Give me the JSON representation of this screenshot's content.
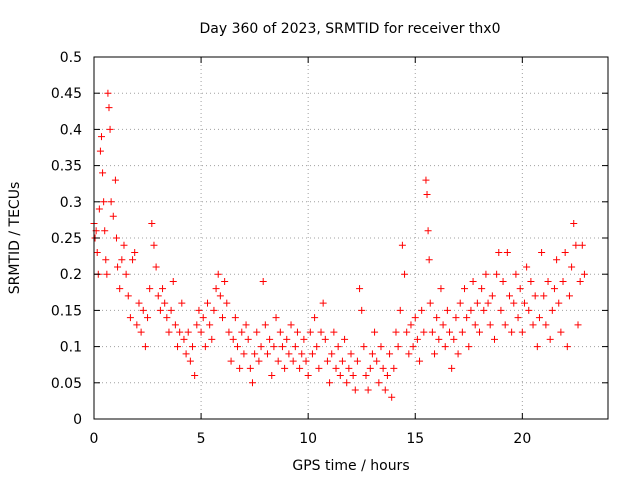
{
  "chart_data": {
    "type": "scatter",
    "title": "Day 360 of 2023, SRMTID for receiver thx0",
    "xlabel": "GPS time / hours",
    "ylabel": "SRMTID / TECUs",
    "xlim": [
      0,
      24
    ],
    "ylim": [
      0,
      0.5
    ],
    "xticks": [
      0,
      5,
      10,
      15,
      20
    ],
    "yticks": [
      0,
      0.05,
      0.1,
      0.15,
      0.2,
      0.25,
      0.3,
      0.35,
      0.4,
      0.45,
      0.5
    ],
    "grid": true,
    "marker": "plus",
    "color": "#ff0000",
    "series": [
      {
        "points": [
          [
            0.0,
            0.27
          ],
          [
            0.05,
            0.25
          ],
          [
            0.1,
            0.26
          ],
          [
            0.15,
            0.23
          ],
          [
            0.2,
            0.2
          ],
          [
            0.25,
            0.29
          ],
          [
            0.3,
            0.37
          ],
          [
            0.35,
            0.39
          ],
          [
            0.4,
            0.34
          ],
          [
            0.45,
            0.3
          ],
          [
            0.5,
            0.26
          ],
          [
            0.55,
            0.22
          ],
          [
            0.6,
            0.2
          ],
          [
            0.65,
            0.45
          ],
          [
            0.7,
            0.43
          ],
          [
            0.75,
            0.4
          ],
          [
            0.8,
            0.3
          ],
          [
            0.9,
            0.28
          ],
          [
            1.0,
            0.33
          ],
          [
            1.05,
            0.25
          ],
          [
            1.1,
            0.21
          ],
          [
            1.2,
            0.18
          ],
          [
            1.3,
            0.22
          ],
          [
            1.4,
            0.24
          ],
          [
            1.5,
            0.2
          ],
          [
            1.6,
            0.17
          ],
          [
            1.7,
            0.14
          ],
          [
            1.8,
            0.22
          ],
          [
            1.9,
            0.23
          ],
          [
            2.0,
            0.13
          ],
          [
            2.1,
            0.16
          ],
          [
            2.2,
            0.12
          ],
          [
            2.3,
            0.15
          ],
          [
            2.4,
            0.1
          ],
          [
            2.5,
            0.14
          ],
          [
            2.6,
            0.18
          ],
          [
            2.7,
            0.27
          ],
          [
            2.8,
            0.24
          ],
          [
            2.9,
            0.21
          ],
          [
            3.0,
            0.17
          ],
          [
            3.1,
            0.15
          ],
          [
            3.2,
            0.18
          ],
          [
            3.3,
            0.16
          ],
          [
            3.4,
            0.14
          ],
          [
            3.5,
            0.12
          ],
          [
            3.6,
            0.15
          ],
          [
            3.7,
            0.19
          ],
          [
            3.8,
            0.13
          ],
          [
            3.9,
            0.1
          ],
          [
            4.0,
            0.12
          ],
          [
            4.1,
            0.16
          ],
          [
            4.2,
            0.11
          ],
          [
            4.3,
            0.09
          ],
          [
            4.4,
            0.12
          ],
          [
            4.5,
            0.08
          ],
          [
            4.6,
            0.1
          ],
          [
            4.7,
            0.06
          ],
          [
            4.8,
            0.13
          ],
          [
            4.9,
            0.15
          ],
          [
            5.0,
            0.12
          ],
          [
            5.1,
            0.14
          ],
          [
            5.2,
            0.1
          ],
          [
            5.3,
            0.16
          ],
          [
            5.4,
            0.13
          ],
          [
            5.5,
            0.11
          ],
          [
            5.6,
            0.15
          ],
          [
            5.7,
            0.18
          ],
          [
            5.8,
            0.2
          ],
          [
            5.9,
            0.17
          ],
          [
            6.0,
            0.14
          ],
          [
            6.1,
            0.19
          ],
          [
            6.2,
            0.16
          ],
          [
            6.3,
            0.12
          ],
          [
            6.4,
            0.08
          ],
          [
            6.5,
            0.11
          ],
          [
            6.6,
            0.14
          ],
          [
            6.7,
            0.1
          ],
          [
            6.8,
            0.07
          ],
          [
            6.9,
            0.12
          ],
          [
            7.0,
            0.09
          ],
          [
            7.1,
            0.13
          ],
          [
            7.2,
            0.11
          ],
          [
            7.3,
            0.07
          ],
          [
            7.4,
            0.05
          ],
          [
            7.5,
            0.09
          ],
          [
            7.6,
            0.12
          ],
          [
            7.7,
            0.08
          ],
          [
            7.8,
            0.1
          ],
          [
            7.9,
            0.19
          ],
          [
            8.0,
            0.13
          ],
          [
            8.1,
            0.09
          ],
          [
            8.2,
            0.11
          ],
          [
            8.3,
            0.06
          ],
          [
            8.4,
            0.1
          ],
          [
            8.5,
            0.14
          ],
          [
            8.6,
            0.08
          ],
          [
            8.7,
            0.12
          ],
          [
            8.8,
            0.1
          ],
          [
            8.9,
            0.07
          ],
          [
            9.0,
            0.11
          ],
          [
            9.1,
            0.09
          ],
          [
            9.2,
            0.13
          ],
          [
            9.3,
            0.08
          ],
          [
            9.4,
            0.1
          ],
          [
            9.5,
            0.12
          ],
          [
            9.6,
            0.07
          ],
          [
            9.7,
            0.09
          ],
          [
            9.8,
            0.11
          ],
          [
            9.9,
            0.08
          ],
          [
            10.0,
            0.06
          ],
          [
            10.1,
            0.12
          ],
          [
            10.2,
            0.09
          ],
          [
            10.3,
            0.14
          ],
          [
            10.4,
            0.1
          ],
          [
            10.5,
            0.07
          ],
          [
            10.6,
            0.12
          ],
          [
            10.7,
            0.16
          ],
          [
            10.8,
            0.11
          ],
          [
            10.9,
            0.08
          ],
          [
            11.0,
            0.05
          ],
          [
            11.1,
            0.09
          ],
          [
            11.2,
            0.12
          ],
          [
            11.3,
            0.07
          ],
          [
            11.4,
            0.1
          ],
          [
            11.5,
            0.06
          ],
          [
            11.6,
            0.08
          ],
          [
            11.7,
            0.11
          ],
          [
            11.8,
            0.05
          ],
          [
            11.9,
            0.07
          ],
          [
            12.0,
            0.09
          ],
          [
            12.1,
            0.06
          ],
          [
            12.2,
            0.04
          ],
          [
            12.3,
            0.08
          ],
          [
            12.4,
            0.18
          ],
          [
            12.5,
            0.15
          ],
          [
            12.6,
            0.1
          ],
          [
            12.7,
            0.06
          ],
          [
            12.8,
            0.04
          ],
          [
            12.9,
            0.07
          ],
          [
            13.0,
            0.09
          ],
          [
            13.1,
            0.12
          ],
          [
            13.2,
            0.08
          ],
          [
            13.3,
            0.05
          ],
          [
            13.4,
            0.1
          ],
          [
            13.5,
            0.07
          ],
          [
            13.6,
            0.04
          ],
          [
            13.7,
            0.06
          ],
          [
            13.8,
            0.09
          ],
          [
            13.9,
            0.03
          ],
          [
            14.0,
            0.07
          ],
          [
            14.1,
            0.12
          ],
          [
            14.2,
            0.1
          ],
          [
            14.3,
            0.15
          ],
          [
            14.4,
            0.24
          ],
          [
            14.5,
            0.2
          ],
          [
            14.6,
            0.12
          ],
          [
            14.7,
            0.09
          ],
          [
            14.8,
            0.13
          ],
          [
            14.9,
            0.1
          ],
          [
            15.0,
            0.14
          ],
          [
            15.1,
            0.11
          ],
          [
            15.2,
            0.08
          ],
          [
            15.3,
            0.15
          ],
          [
            15.4,
            0.12
          ],
          [
            15.5,
            0.33
          ],
          [
            15.55,
            0.31
          ],
          [
            15.6,
            0.26
          ],
          [
            15.65,
            0.22
          ],
          [
            15.7,
            0.16
          ],
          [
            15.8,
            0.12
          ],
          [
            15.9,
            0.09
          ],
          [
            16.0,
            0.14
          ],
          [
            16.1,
            0.11
          ],
          [
            16.2,
            0.18
          ],
          [
            16.3,
            0.13
          ],
          [
            16.4,
            0.1
          ],
          [
            16.5,
            0.15
          ],
          [
            16.6,
            0.12
          ],
          [
            16.7,
            0.07
          ],
          [
            16.8,
            0.11
          ],
          [
            16.9,
            0.14
          ],
          [
            17.0,
            0.09
          ],
          [
            17.1,
            0.16
          ],
          [
            17.2,
            0.12
          ],
          [
            17.3,
            0.18
          ],
          [
            17.4,
            0.14
          ],
          [
            17.5,
            0.1
          ],
          [
            17.6,
            0.15
          ],
          [
            17.7,
            0.19
          ],
          [
            17.8,
            0.13
          ],
          [
            17.9,
            0.16
          ],
          [
            18.0,
            0.12
          ],
          [
            18.1,
            0.18
          ],
          [
            18.2,
            0.15
          ],
          [
            18.3,
            0.2
          ],
          [
            18.4,
            0.16
          ],
          [
            18.5,
            0.13
          ],
          [
            18.6,
            0.17
          ],
          [
            18.7,
            0.11
          ],
          [
            18.8,
            0.2
          ],
          [
            18.9,
            0.23
          ],
          [
            19.0,
            0.15
          ],
          [
            19.1,
            0.19
          ],
          [
            19.2,
            0.13
          ],
          [
            19.3,
            0.23
          ],
          [
            19.4,
            0.17
          ],
          [
            19.5,
            0.12
          ],
          [
            19.6,
            0.16
          ],
          [
            19.7,
            0.2
          ],
          [
            19.8,
            0.14
          ],
          [
            19.9,
            0.18
          ],
          [
            20.0,
            0.12
          ],
          [
            20.1,
            0.16
          ],
          [
            20.2,
            0.21
          ],
          [
            20.3,
            0.15
          ],
          [
            20.4,
            0.19
          ],
          [
            20.5,
            0.13
          ],
          [
            20.6,
            0.17
          ],
          [
            20.7,
            0.1
          ],
          [
            20.8,
            0.14
          ],
          [
            20.9,
            0.23
          ],
          [
            21.0,
            0.17
          ],
          [
            21.1,
            0.13
          ],
          [
            21.2,
            0.19
          ],
          [
            21.3,
            0.11
          ],
          [
            21.4,
            0.15
          ],
          [
            21.5,
            0.18
          ],
          [
            21.6,
            0.22
          ],
          [
            21.7,
            0.16
          ],
          [
            21.8,
            0.12
          ],
          [
            21.9,
            0.19
          ],
          [
            22.0,
            0.23
          ],
          [
            22.1,
            0.1
          ],
          [
            22.2,
            0.17
          ],
          [
            22.3,
            0.21
          ],
          [
            22.4,
            0.27
          ],
          [
            22.5,
            0.24
          ],
          [
            22.6,
            0.13
          ],
          [
            22.7,
            0.19
          ],
          [
            22.8,
            0.24
          ],
          [
            22.9,
            0.2
          ]
        ]
      }
    ]
  }
}
